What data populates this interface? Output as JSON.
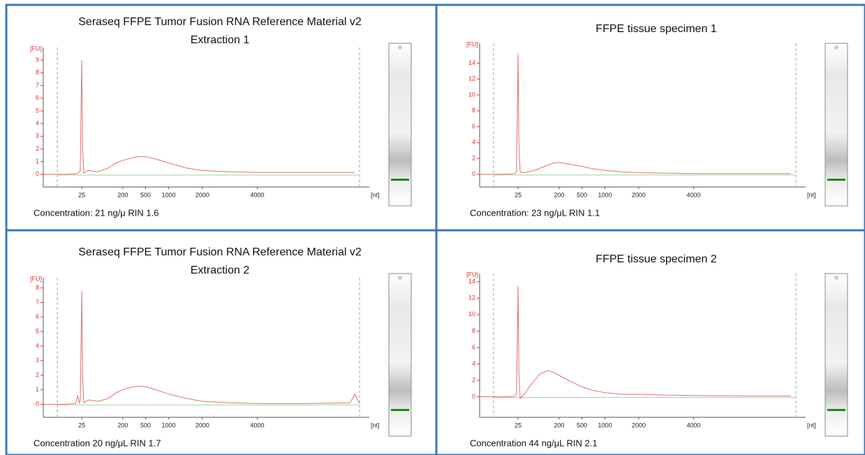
{
  "chart_data": [
    {
      "type": "line",
      "title": "Seraseq FFPE Tumor Fusion RNA Reference Material v2",
      "subtitle": "Extraction 1",
      "annotation": "Concentration:  21 ng/μ   RIN 1.6",
      "x_label": "[nt]",
      "y_label": "[FU]",
      "color": "#e07070",
      "x": [
        3,
        10,
        20,
        23,
        24,
        25,
        26,
        28,
        35,
        60,
        100,
        150,
        200,
        300,
        400,
        500,
        700,
        1000,
        1500,
        2000,
        3000,
        4000,
        6000,
        8000
      ],
      "values": [
        0,
        0,
        0.05,
        0.3,
        5,
        9,
        2,
        0.1,
        0.3,
        0.2,
        0.5,
        0.9,
        1.1,
        1.3,
        1.4,
        1.4,
        1.2,
        0.9,
        0.5,
        0.3,
        0.2,
        0.15,
        0.15,
        0.15
      ],
      "xlim": [
        3,
        8500
      ],
      "ylim": [
        -1,
        10
      ],
      "xticks": [
        25,
        200,
        500,
        1000,
        2000,
        4000
      ],
      "yticks": [
        0,
        1,
        2,
        3,
        4,
        5,
        6,
        7,
        8,
        9
      ]
    },
    {
      "type": "line",
      "title": "FFPE tissue specimen 1",
      "annotation": "Concentration:  23 ng/μL   RIN 1.1",
      "x_label": "[nt]",
      "y_label": "[FU]",
      "color": "#e07070",
      "x": [
        3,
        10,
        20,
        23,
        24,
        25,
        26,
        28,
        35,
        60,
        100,
        150,
        200,
        300,
        500,
        700,
        1000,
        1500,
        2000,
        3000,
        4000,
        6000,
        8000
      ],
      "values": [
        0,
        0,
        0.05,
        0.3,
        8,
        15.2,
        4,
        0.3,
        0.2,
        0.5,
        1,
        1.4,
        1.5,
        1.3,
        1,
        0.7,
        0.5,
        0.3,
        0.2,
        0.15,
        0.1,
        0.1,
        0.1
      ],
      "xlim": [
        3,
        8500
      ],
      "ylim": [
        -1.6,
        16.5
      ],
      "xticks": [
        25,
        200,
        500,
        1000,
        2000,
        4000
      ],
      "yticks": [
        0,
        2,
        4,
        6,
        8,
        10,
        12,
        14
      ]
    },
    {
      "type": "line",
      "title": "Seraseq FFPE Tumor Fusion RNA Reference Material v2",
      "subtitle": "Extraction 2",
      "annotation": "Concentration  20 ng/μL   RIN 1.7",
      "x_label": "[nt]",
      "y_label": "[FU]",
      "color": "#e07070",
      "x": [
        3,
        10,
        18,
        20,
        22,
        23,
        24,
        25,
        26,
        28,
        35,
        60,
        100,
        150,
        200,
        300,
        400,
        500,
        700,
        1000,
        1500,
        2000,
        3000,
        4000,
        6000,
        7800,
        8000,
        8200
      ],
      "values": [
        0,
        0,
        0.05,
        0.6,
        0.05,
        0.3,
        4,
        7.8,
        2,
        0.1,
        0.3,
        0.2,
        0.4,
        0.8,
        1,
        1.2,
        1.25,
        1.2,
        1,
        0.7,
        0.4,
        0.2,
        0.1,
        0.05,
        0.05,
        0.1,
        0.7,
        0.05
      ],
      "xlim": [
        3,
        8500
      ],
      "ylim": [
        -0.9,
        8.7
      ],
      "xticks": [
        25,
        200,
        500,
        1000,
        2000,
        4000
      ],
      "yticks": [
        0,
        1,
        2,
        3,
        4,
        5,
        6,
        7,
        8
      ]
    },
    {
      "type": "line",
      "title": "FFPE tissue specimen 2",
      "annotation": "Concentration  44 ng/μL   RIN 2.1",
      "x_label": "[nt]",
      "y_label": "[FU]",
      "color": "#e07070",
      "x": [
        3,
        10,
        20,
        23,
        24,
        25,
        26,
        28,
        35,
        50,
        80,
        120,
        150,
        200,
        300,
        500,
        700,
        1000,
        1500,
        2000,
        3000,
        4000,
        6000,
        8000
      ],
      "values": [
        0,
        0,
        0.05,
        0.3,
        7,
        13.5,
        3,
        -0.2,
        0.3,
        1.5,
        2.8,
        3.2,
        3,
        2.6,
        2,
        1.2,
        0.8,
        0.5,
        0.3,
        0.3,
        0.2,
        0.15,
        0.1,
        0.1
      ],
      "xlim": [
        3,
        8500
      ],
      "ylim": [
        -2.5,
        15
      ],
      "xticks": [
        25,
        200,
        500,
        1000,
        2000,
        4000
      ],
      "yticks": [
        0,
        2,
        4,
        6,
        8,
        10,
        12,
        14
      ]
    }
  ]
}
